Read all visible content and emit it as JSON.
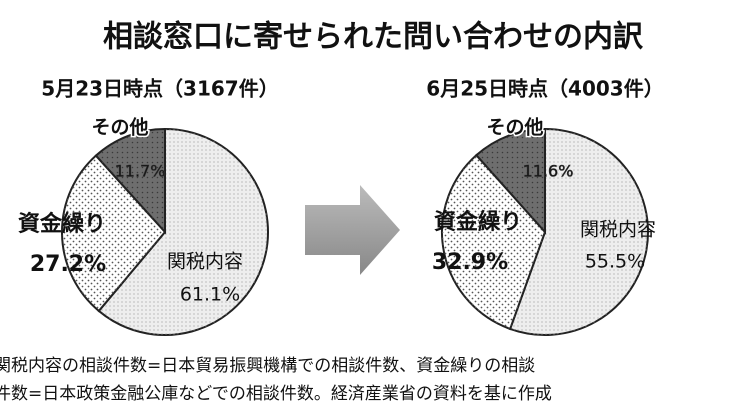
{
  "title": "相談窓口に寄せられた問い合わせの内訳",
  "notes": [
    "関税内容の相談件数=日本貿易振興機構での相談件数、資金繰りの相談",
    "件数=日本政策金融公庫などでの相談件数。経済産業省の資料を基に作成"
  ],
  "chart_data": [
    {
      "type": "pie",
      "subtitle": "5月23日時点（3167件）",
      "categories": [
        "関税内容",
        "資金繰り",
        "その他"
      ],
      "values": [
        61.1,
        27.2,
        11.7
      ],
      "value_labels": [
        "61.1%",
        "27.2%",
        "11.7%"
      ],
      "colors": [
        "#eeeeee",
        "#ffffff",
        "#6e6e6e"
      ]
    },
    {
      "type": "pie",
      "subtitle": "6月25日時点（4003件）",
      "categories": [
        "関税内容",
        "資金繰り",
        "その他"
      ],
      "values": [
        55.5,
        32.9,
        11.6
      ],
      "value_labels": [
        "55.5%",
        "32.9%",
        "11.6%"
      ],
      "colors": [
        "#eeeeee",
        "#ffffff",
        "#6e6e6e"
      ]
    }
  ]
}
